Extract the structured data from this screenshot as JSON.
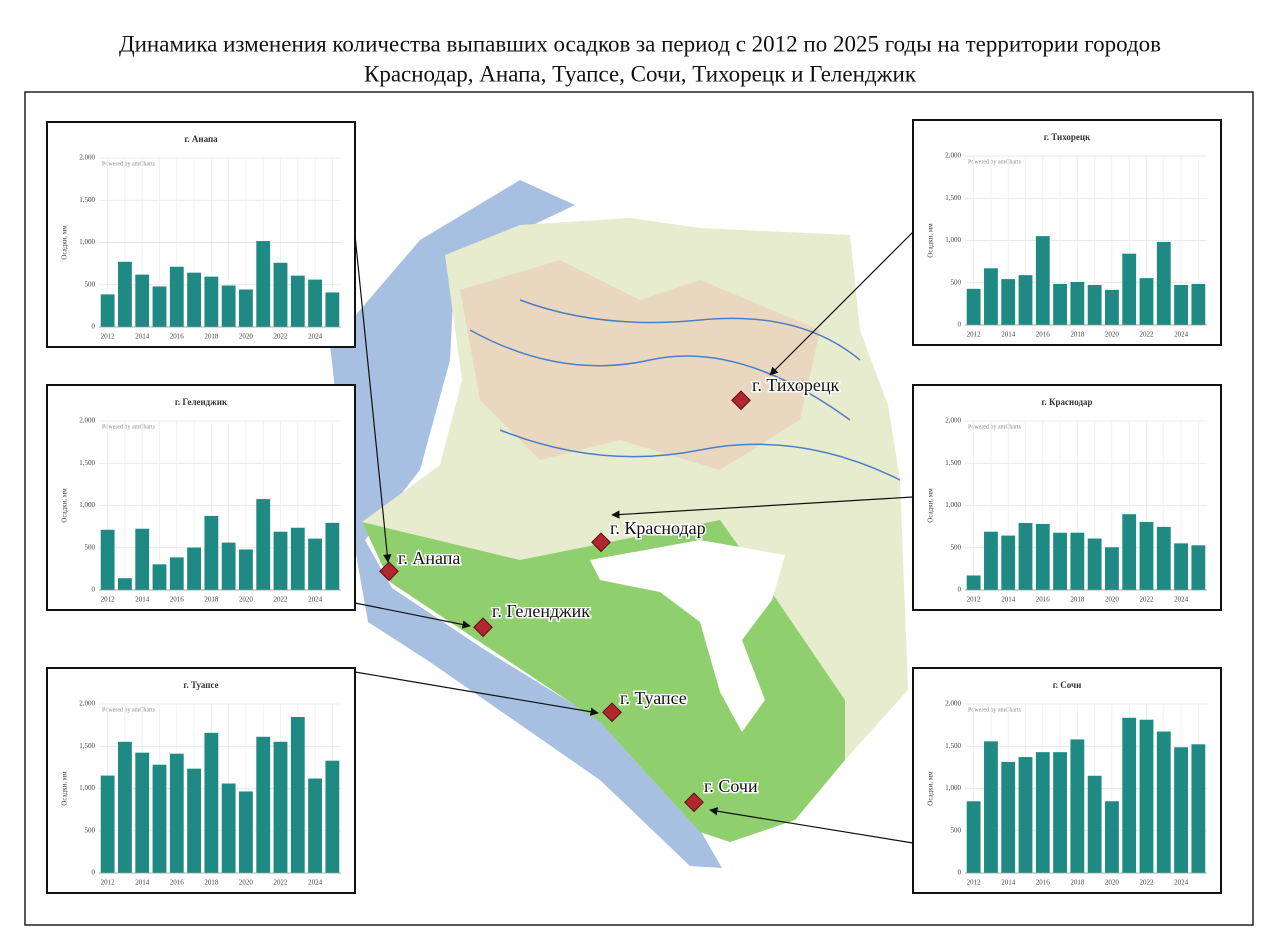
{
  "header": {
    "title_line1": "Динамика изменения количества выпавших осадков за период с 2012 по 2025 годы на территории городов",
    "title_line2": "Краснодар, Анапа, Туапсе, Сочи, Тихорецк и Геленджик"
  },
  "map": {
    "cities": [
      "г. Анапа",
      "г. Геленджик",
      "г. Туапсе",
      "г. Тихорецк",
      "г. Краснодар",
      "г. Сочи"
    ]
  },
  "chart_data": [
    {
      "type": "bar",
      "title": "г. Анапа",
      "y_label": "Осадки, мм",
      "credit": "Powered by amCharts",
      "color": "#1f8a84",
      "categories": [
        "2012",
        null,
        "2014",
        null,
        "2016",
        null,
        "2018",
        null,
        "2020",
        null,
        "2022",
        null,
        "2024",
        null
      ],
      "values": [
        386,
        772,
        620,
        480,
        713,
        643,
        596,
        491,
        444,
        1017,
        760,
        608,
        561,
        409
      ],
      "ylim": [
        0,
        2000
      ],
      "yticks": [
        0,
        500,
        {
          "value": 1000,
          "label": "1,000"
        },
        {
          "value": 1500,
          "label": "1,500"
        },
        {
          "value": 2000,
          "label": "2,000"
        }
      ],
      "grid": true
    },
    {
      "type": "bar",
      "title": "г. Геленджик",
      "y_label": "Осадки, мм",
      "credit": "Powered by amCharts",
      "color": "#1f8a84",
      "categories": [
        "2012",
        null,
        "2014",
        null,
        "2016",
        null,
        "2018",
        null,
        "2020",
        null,
        "2022",
        null,
        "2024",
        null
      ],
      "values": [
        713,
        140,
        725,
        304,
        386,
        503,
        877,
        561,
        480,
        1076,
        690,
        737,
        608,
        795
      ],
      "ylim": [
        0,
        2000
      ],
      "yticks": [
        0,
        500,
        {
          "value": 1000,
          "label": "1,000"
        },
        {
          "value": 1500,
          "label": "1,500"
        },
        {
          "value": 2000,
          "label": "2,000"
        }
      ],
      "grid": true
    },
    {
      "type": "bar",
      "title": "г. Туапсе",
      "y_label": "Осадки, мм",
      "credit": "Powered by amCharts",
      "color": "#1f8a84",
      "categories": [
        "2012",
        null,
        "2014",
        null,
        "2016",
        null,
        "2018",
        null,
        "2020",
        null,
        "2022",
        null,
        "2024",
        null
      ],
      "values": [
        1153,
        1553,
        1424,
        1282,
        1412,
        1235,
        1659,
        1059,
        965,
        1612,
        1553,
        1847,
        1118,
        1329
      ],
      "ylim": [
        0,
        2000
      ],
      "yticks": [
        0,
        500,
        {
          "value": 1000,
          "label": "1,000"
        },
        {
          "value": 1500,
          "label": "1,500"
        },
        {
          "value": 2000,
          "label": "2,000"
        }
      ],
      "grid": true
    },
    {
      "type": "bar",
      "title": "г. Тихорецк",
      "y_label": "Осадки, мм",
      "credit": "Powered by amCharts",
      "color": "#1f8a84",
      "categories": [
        "2012",
        null,
        "2014",
        null,
        "2016",
        null,
        "2018",
        null,
        "2020",
        null,
        "2022",
        null,
        "2024",
        null
      ],
      "values": [
        428,
        671,
        543,
        590,
        1052,
        486,
        509,
        474,
        416,
        844,
        555,
        983,
        474,
        486
      ],
      "ylim": [
        0,
        2000
      ],
      "yticks": [
        0,
        500,
        {
          "value": 1000,
          "label": "1,000"
        },
        {
          "value": 1500,
          "label": "1,500"
        },
        {
          "value": 2000,
          "label": "2,000"
        }
      ],
      "grid": true
    },
    {
      "type": "bar",
      "title": "г. Краснодар",
      "y_label": "Осадки, мм",
      "credit": "Powered by amCharts",
      "color": "#1f8a84",
      "categories": [
        "2012",
        null,
        "2014",
        null,
        "2016",
        null,
        "2018",
        null,
        "2020",
        null,
        "2022",
        null,
        "2024",
        null
      ],
      "values": [
        172,
        690,
        644,
        793,
        782,
        678,
        678,
        609,
        506,
        897,
        805,
        747,
        552,
        529
      ],
      "ylim": [
        0,
        2000
      ],
      "yticks": [
        0,
        500,
        {
          "value": 1000,
          "label": "1,000"
        },
        {
          "value": 1500,
          "label": "1,500"
        },
        {
          "value": 2000,
          "label": "2,000"
        }
      ],
      "grid": true
    },
    {
      "type": "bar",
      "title": "г. Сочи",
      "y_label": "Осадки, мм",
      "credit": "Powered by amCharts",
      "color": "#1f8a84",
      "categories": [
        "2012",
        null,
        "2014",
        null,
        "2016",
        null,
        "2018",
        null,
        "2020",
        null,
        "2022",
        null,
        "2024",
        null
      ],
      "values": [
        849,
        1558,
        1314,
        1372,
        1430,
        1430,
        1581,
        1151,
        849,
        1837,
        1814,
        1674,
        1488,
        1523
      ],
      "ylim": [
        0,
        2000
      ],
      "yticks": [
        0,
        500,
        {
          "value": 1000,
          "label": "1,000"
        },
        {
          "value": 1500,
          "label": "1,500"
        },
        {
          "value": 2000,
          "label": "2,000"
        }
      ],
      "grid": true
    }
  ]
}
